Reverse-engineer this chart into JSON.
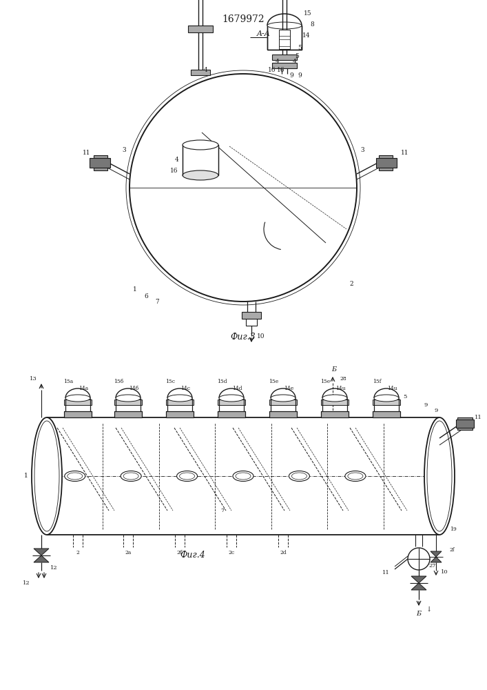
{
  "title": "1679972",
  "fig3_label": "A-A",
  "fig3_caption": "Фиг.3",
  "fig4_caption": "Фиг.4",
  "bg_color": "#ffffff",
  "line_color": "#1a1a1a",
  "line_width": 0.9,
  "font_size_title": 10,
  "font_size_labels": 6.5,
  "font_size_caption": 9
}
